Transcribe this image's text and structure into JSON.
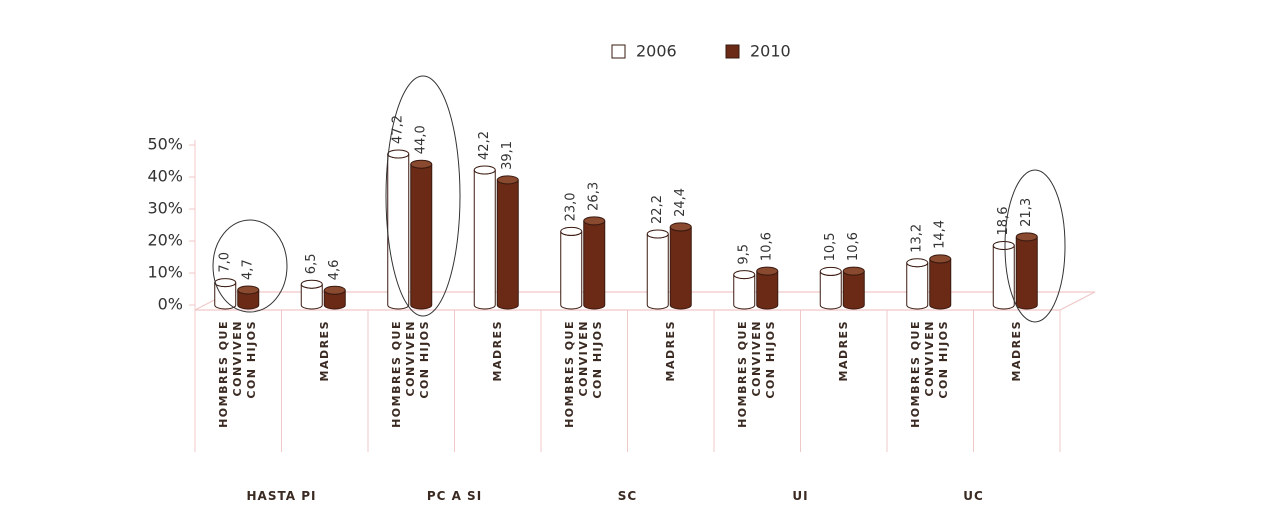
{
  "chart_data": {
    "type": "bar",
    "categories": [
      "HOMBRES QUE\nCONVIVEN\nCON HIJOS",
      "MADRES",
      "HOMBRES QUE\nCONVIVEN\nCON HIJOS",
      "MADRES",
      "HOMBRES QUE\nCONVIVEN\nCON HIJOS",
      "MADRES",
      "HOMBRES QUE\nCONVIVEN\nCON HIJOS",
      "MADRES",
      "HOMBRES QUE\nCONVIVEN\nCON HIJOS",
      "MADRES"
    ],
    "groups": [
      "HASTA PI",
      "PC A SI",
      "SC",
      "UI",
      "UC"
    ],
    "series": [
      {
        "name": "2006",
        "color": "#ffffff",
        "values": [
          7.0,
          6.5,
          47.2,
          42.2,
          23.0,
          22.2,
          9.5,
          10.5,
          13.2,
          18.6
        ],
        "value_labels": [
          "7,0",
          "6,5",
          "47,2",
          "42,2",
          "23,0",
          "22,2",
          "9,5",
          "10,5",
          "13,2",
          "18,6"
        ]
      },
      {
        "name": "2010",
        "color": "#6b2a16",
        "values": [
          4.7,
          4.6,
          44.0,
          39.1,
          26.3,
          24.4,
          10.6,
          10.6,
          14.4,
          21.3
        ],
        "value_labels": [
          "4,7",
          "4,6",
          "44,0",
          "39,1",
          "26,3",
          "24,4",
          "10,6",
          "10,6",
          "14,4",
          "21,3"
        ]
      }
    ],
    "ylim": [
      0,
      50
    ],
    "yticks": [
      {
        "value": 0,
        "label": "0%"
      },
      {
        "value": 10,
        "label": "10%"
      },
      {
        "value": 20,
        "label": "20%"
      },
      {
        "value": 30,
        "label": "30%"
      },
      {
        "value": 40,
        "label": "40%"
      },
      {
        "value": 50,
        "label": "50%"
      }
    ]
  }
}
